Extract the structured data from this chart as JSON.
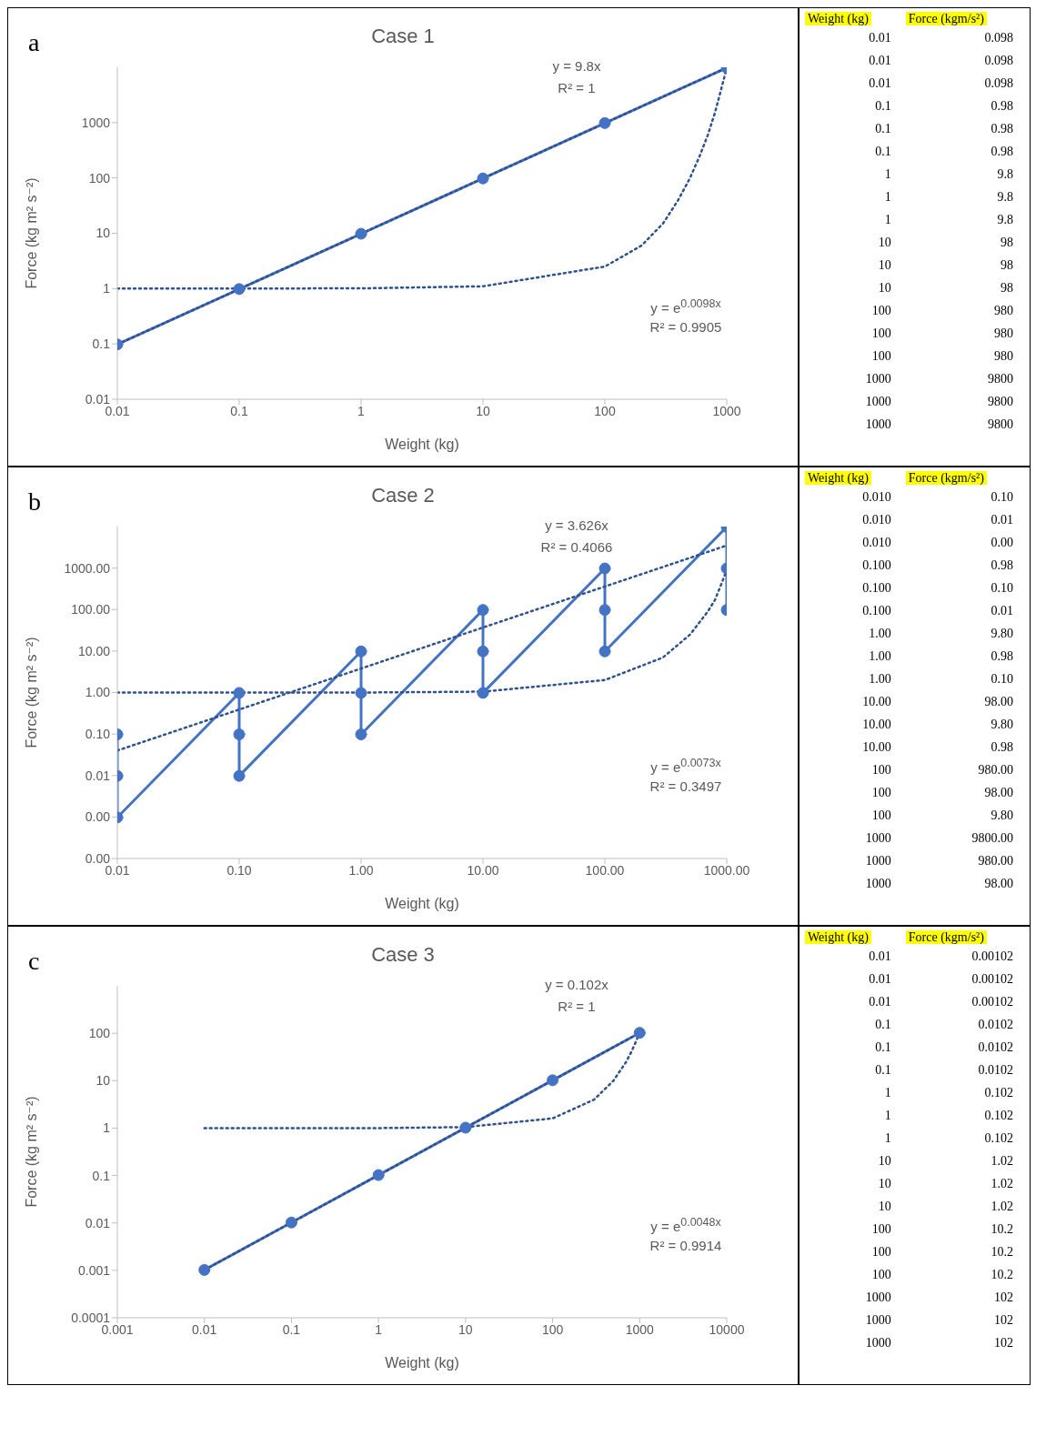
{
  "chart_data": [
    {
      "type": "line",
      "title": "Case 1",
      "xlabel": "Weight (kg)",
      "ylabel": "Force (kg m² s⁻²)",
      "log": "xy",
      "xlim": [
        0.01,
        1000
      ],
      "ylim": [
        0.01,
        10000
      ],
      "xticks": [
        0.01,
        0.1,
        1,
        10,
        100,
        1000
      ],
      "yticks": [
        0.01,
        0.1,
        1,
        10,
        100,
        1000
      ],
      "annotations": [
        "a",
        "y = 9.8x",
        "R² = 1",
        "y = e$^{0.0098x}$",
        "R² = 0.9905"
      ],
      "series": [
        {
          "type": "line",
          "color": "#4472c4",
          "marker": "circle",
          "line_style": "solid",
          "x": [
            0.01,
            0.1,
            1,
            10,
            100,
            1000
          ],
          "values": [
            0.098,
            0.98,
            9.8,
            98,
            980,
            9800
          ]
        },
        {
          "type": "line",
          "color": "#2f528f",
          "marker": "none",
          "line_style": "dotted",
          "x": [
            0.01,
            1000
          ],
          "values": [
            0.098,
            9800
          ]
        },
        {
          "type": "line",
          "color": "#2f528f",
          "marker": "none",
          "line_style": "dotted",
          "x": [
            0.01,
            1,
            10,
            100,
            200,
            300,
            400,
            500,
            600,
            700,
            800,
            900,
            1000
          ],
          "values": [
            1,
            1.01,
            1.1,
            2.5,
            6,
            15,
            40,
            100,
            250,
            600,
            1500,
            4000,
            9800
          ]
        }
      ]
    },
    {
      "type": "other",
      "xlabel": "Weight (kg)",
      "ylabel": "Force (kgm/s²)",
      "categories": [
        "0.01",
        "0.01",
        "0.01",
        "0.1",
        "0.1",
        "0.1",
        "1",
        "1",
        "1",
        "10",
        "10",
        "10",
        "100",
        "100",
        "100",
        "1000",
        "1000",
        "1000"
      ],
      "value_labels": [
        "0.098",
        "0.098",
        "0.098",
        "0.98",
        "0.98",
        "0.98",
        "9.8",
        "9.8",
        "9.8",
        "98",
        "98",
        "98",
        "980",
        "980",
        "980",
        "9800",
        "9800",
        "9800"
      ]
    },
    {
      "type": "line",
      "title": "Case 2",
      "xlabel": "Weight (kg)",
      "ylabel": "Force (kg m² s⁻²)",
      "log": "xy",
      "xlim": [
        0.01,
        1000
      ],
      "ylim": [
        0.0001,
        10000
      ],
      "xticks": [
        0.01,
        {
          "value": 0.1,
          "label": "0.10"
        },
        {
          "value": 1,
          "label": "1.00"
        },
        {
          "value": 10,
          "label": "10.00"
        },
        {
          "value": 100,
          "label": "100.00"
        },
        {
          "value": 1000,
          "label": "1000.00"
        }
      ],
      "yticks": [
        {
          "value": 0.0001,
          "label": "0.00"
        },
        {
          "value": 0.001,
          "label": "0.00"
        },
        0.01,
        {
          "value": 0.1,
          "label": "0.10"
        },
        {
          "value": 1,
          "label": "1.00"
        },
        {
          "value": 10,
          "label": "10.00"
        },
        {
          "value": 100,
          "label": "100.00"
        },
        {
          "value": 1000,
          "label": "1000.00"
        }
      ],
      "annotations": [
        "b",
        "y = 3.626x",
        "R² = 0.4066",
        "y = e$^{0.0073x}$",
        "R² = 0.3497"
      ],
      "series": [
        {
          "type": "line",
          "color": "#4472c4",
          "marker": "circle",
          "line_style": "solid",
          "x": [
            0.01,
            0.01,
            0.01,
            0.1,
            0.1,
            0.1,
            1,
            1,
            1,
            10,
            10,
            10,
            100,
            100,
            100,
            1000,
            1000,
            1000
          ],
          "values": [
            0.098,
            0.0098,
            0.00098,
            0.98,
            0.098,
            0.0098,
            9.8,
            0.98,
            0.098,
            98,
            9.8,
            0.98,
            980,
            98,
            9.8,
            9800,
            980,
            98
          ]
        },
        {
          "type": "line",
          "color": "#2f528f",
          "marker": "none",
          "line_style": "dotted",
          "x": [
            0.01,
            1000
          ],
          "values": [
            0.04,
            3500
          ]
        },
        {
          "type": "line",
          "color": "#2f528f",
          "marker": "none",
          "line_style": "dotted",
          "x": [
            0.01,
            1,
            10,
            100,
            300,
            500,
            700,
            800,
            900,
            1000
          ],
          "values": [
            1,
            1,
            1.05,
            2,
            7,
            25,
            90,
            170,
            400,
            900
          ]
        }
      ]
    },
    {
      "type": "other",
      "xlabel": "Weight (kg)",
      "ylabel": "Force (kgm/s²)",
      "categories": [
        "0.010",
        "0.010",
        "0.010",
        "0.100",
        "0.100",
        "0.100",
        "1.00",
        "1.00",
        "1.00",
        "10.00",
        "10.00",
        "10.00",
        "100",
        "100",
        "100",
        "1000",
        "1000",
        "1000"
      ],
      "value_labels": [
        "0.10",
        "0.01",
        "0.00",
        "0.98",
        "0.10",
        "0.01",
        "9.80",
        "0.98",
        "0.10",
        "98.00",
        "9.80",
        "0.98",
        "980.00",
        "98.00",
        "9.80",
        "9800.00",
        "980.00",
        "98.00"
      ]
    },
    {
      "type": "line",
      "title": "Case 3",
      "xlabel": "Weight (kg)",
      "ylabel": "Force (kg m² s⁻²)",
      "log": "xy",
      "xlim": [
        0.001,
        10000
      ],
      "ylim": [
        0.0001,
        1000
      ],
      "xticks": [
        0.001,
        0.01,
        0.1,
        1,
        10,
        100,
        1000,
        10000
      ],
      "yticks": [
        0.0001,
        0.001,
        0.01,
        0.1,
        1,
        10,
        100
      ],
      "annotations": [
        "c",
        "y = 0.102x",
        "R² = 1",
        "y = e$^{0.0048x}$",
        "R² = 0.9914"
      ],
      "series": [
        {
          "type": "line",
          "color": "#4472c4",
          "marker": "circle",
          "line_style": "solid",
          "x": [
            0.01,
            0.1,
            1,
            10,
            100,
            1000
          ],
          "values": [
            0.00102,
            0.0102,
            0.102,
            1.02,
            10.2,
            102
          ]
        },
        {
          "type": "line",
          "color": "#2f528f",
          "marker": "none",
          "line_style": "dotted",
          "x": [
            0.01,
            1000
          ],
          "values": [
            0.00102,
            102
          ]
        },
        {
          "type": "line",
          "color": "#2f528f",
          "marker": "none",
          "line_style": "dotted",
          "x": [
            0.01,
            1,
            10,
            100,
            300,
            500,
            700,
            800,
            900,
            1000
          ],
          "values": [
            1,
            1,
            1.05,
            1.6,
            4,
            10,
            25,
            40,
            65,
            102
          ]
        }
      ]
    },
    {
      "type": "other",
      "xlabel": "Weight (kg)",
      "ylabel": "Force (kgm/s²)",
      "categories": [
        "0.01",
        "0.01",
        "0.01",
        "0.1",
        "0.1",
        "0.1",
        "1",
        "1",
        "1",
        "10",
        "10",
        "10",
        "100",
        "100",
        "100",
        "1000",
        "1000",
        "1000"
      ],
      "value_labels": [
        "0.00102",
        "0.00102",
        "0.00102",
        "0.0102",
        "0.0102",
        "0.0102",
        "0.102",
        "0.102",
        "0.102",
        "1.02",
        "1.02",
        "1.02",
        "10.2",
        "10.2",
        "10.2",
        "102",
        "102",
        "102"
      ]
    }
  ]
}
